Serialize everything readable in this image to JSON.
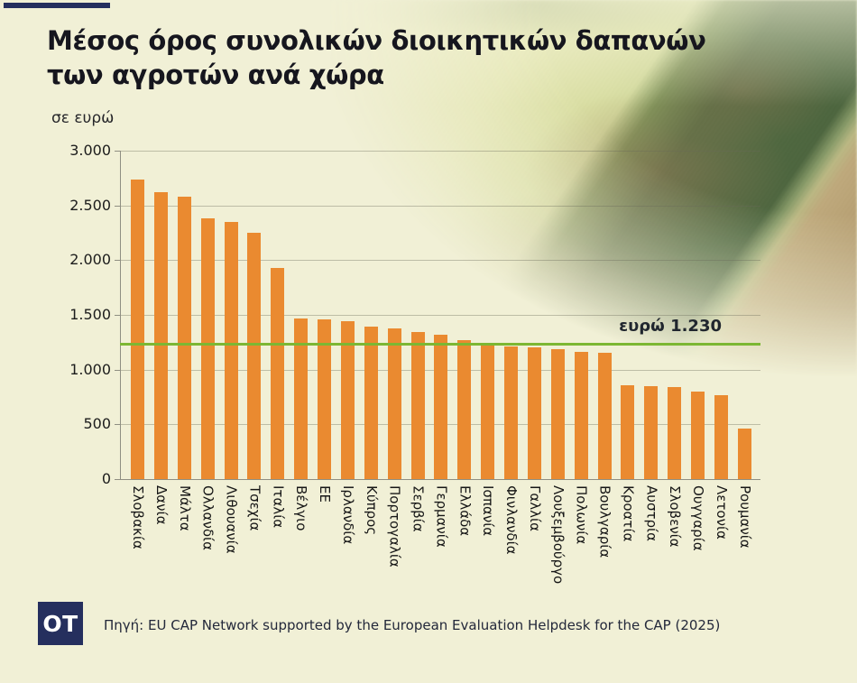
{
  "colors": {
    "background": "#F1F0D6",
    "navy": "#252F5E",
    "bar_orange": "#EA8A30",
    "line_green": "#7CB733",
    "title_text": "#16161E"
  },
  "header": {
    "title_line1": "Μέσος όρος συνολικών διοικητικών δαπανών",
    "title_line2": "των αγροτών ανά χώρα",
    "units_label": "σε ευρώ"
  },
  "chart_data": {
    "type": "bar",
    "title": "Μέσος όρος συνολικών διοικητικών δαπανών των αγροτών ανά χώρα",
    "ylabel": "σε ευρώ",
    "ylim": [
      0,
      3000
    ],
    "grid": true,
    "yticks": [
      0,
      500,
      1000,
      1500,
      2000,
      2500,
      3000
    ],
    "ytick_labels": [
      "0",
      "500",
      "1.000",
      "1.500",
      "2.000",
      "2.500",
      "3.000"
    ],
    "categories": [
      "Σλοβακία",
      "Δανία",
      "Μάλτα",
      "Ολλανδία",
      "Λιθουανία",
      "Τσεχία",
      "Ιταλία",
      "Βέλγιο",
      "ΕΕ",
      "Ιρλανδία",
      "Κύπρος",
      "Πορτογαλία",
      "Σερβία",
      "Γερμανία",
      "Ελλάδα",
      "Ισπανία",
      "Φινλανδία",
      "Γαλλία",
      "Λουξεμβούργο",
      "Πολωνία",
      "Βουλγαρία",
      "Κροατία",
      "Αυστρία",
      "Σλοβενία",
      "Ουγγαρία",
      "Λετονία",
      "Ρουμανία"
    ],
    "values": [
      2740,
      2620,
      2580,
      2380,
      2350,
      2250,
      1930,
      1470,
      1460,
      1440,
      1390,
      1380,
      1340,
      1320,
      1270,
      1220,
      1210,
      1200,
      1190,
      1160,
      1150,
      860,
      850,
      840,
      800,
      770,
      460
    ],
    "bar_color": "#EA8A30",
    "reference_line": {
      "value": 1230,
      "label": "ευρώ 1.230",
      "color": "#7CB733"
    }
  },
  "footer": {
    "logo": "OT",
    "source": "Πηγή: EU CAP Network supported by the European Evaluation Helpdesk for the CAP (2025)"
  }
}
